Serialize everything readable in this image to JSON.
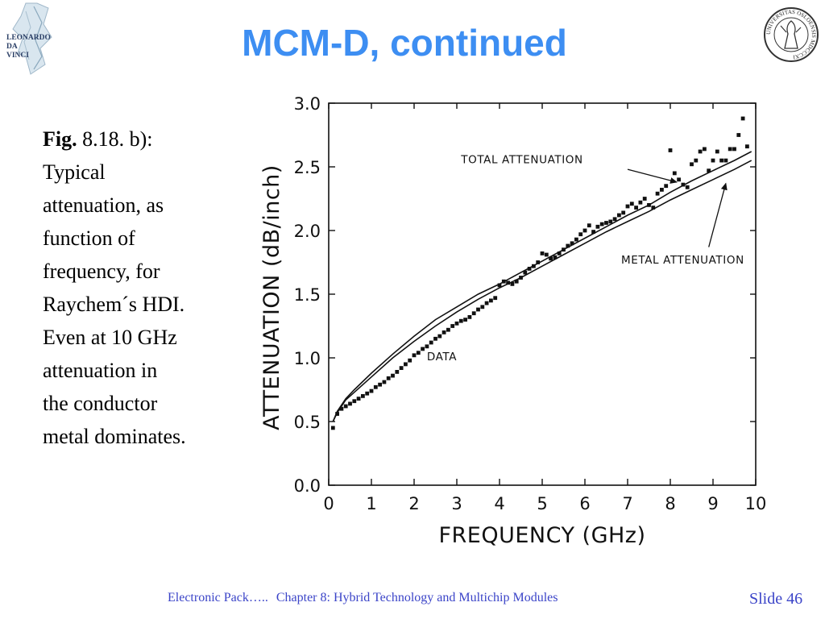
{
  "slide": {
    "title": "MCM-D, continued",
    "caption": {
      "fig_label": "Fig.",
      "fig_number": " 8.18. b):",
      "lines": [
        "Typical",
        "attenuation, as",
        "function of",
        "frequency, for",
        "Raychem´s HDI.",
        "Even at 10 GHz",
        "attenuation in",
        "the conductor",
        "metal dominates."
      ]
    },
    "logos": {
      "left": {
        "icon": "leonardo-da-vinci-logo",
        "text": [
          "LEONARDO",
          "DA",
          "VINCI"
        ]
      },
      "right": {
        "icon": "university-seal-logo",
        "text": "UNIVERSITAS OSLOENSIS MDCCCXI"
      }
    },
    "footer": {
      "course": "Electronic Pack…..",
      "chapter": "Chapter 8: Hybrid Technology and Multichip Modules",
      "slide_label": "Slide 46"
    }
  },
  "chart_data": {
    "type": "scatter",
    "xlabel": "FREQUENCY (GHz)",
    "ylabel": "ATTENUATION (dB/inch)",
    "xlim": [
      0,
      10
    ],
    "ylim": [
      0,
      3.0
    ],
    "x_ticks": [
      0,
      1,
      2,
      3,
      4,
      5,
      6,
      7,
      8,
      9,
      10
    ],
    "y_ticks": [
      0.0,
      0.5,
      1.0,
      1.5,
      2.0,
      2.5,
      3.0
    ],
    "grid": false,
    "annotations": [
      {
        "text": "TOTAL ATTENUATION",
        "points_to": "total"
      },
      {
        "text": "METAL ATTENUATION",
        "points_to": "metal"
      },
      {
        "text": "DATA",
        "points_to": "data"
      }
    ],
    "series": [
      {
        "name": "total",
        "style": "line",
        "x": [
          0.1,
          0.2,
          0.4,
          0.6,
          1.0,
          1.5,
          2.0,
          2.5,
          3.0,
          3.5,
          4.0,
          4.5,
          5.0,
          5.5,
          6.0,
          6.5,
          7.0,
          7.5,
          8.0,
          8.5,
          9.0,
          9.5,
          9.9
        ],
        "y": [
          0.5,
          0.58,
          0.68,
          0.75,
          0.88,
          1.03,
          1.17,
          1.3,
          1.4,
          1.5,
          1.58,
          1.67,
          1.76,
          1.85,
          1.94,
          2.03,
          2.12,
          2.2,
          2.3,
          2.39,
          2.47,
          2.55,
          2.62
        ]
      },
      {
        "name": "metal",
        "style": "line",
        "x": [
          0.1,
          0.2,
          0.4,
          0.6,
          1.0,
          1.5,
          2.0,
          2.5,
          3.0,
          3.5,
          4.0,
          4.5,
          5.0,
          5.5,
          6.0,
          6.5,
          7.0,
          7.5,
          8.0,
          8.5,
          9.0,
          9.5,
          9.9
        ],
        "y": [
          0.5,
          0.57,
          0.67,
          0.73,
          0.85,
          1.0,
          1.13,
          1.25,
          1.36,
          1.46,
          1.55,
          1.63,
          1.72,
          1.81,
          1.9,
          1.99,
          2.07,
          2.15,
          2.24,
          2.32,
          2.4,
          2.48,
          2.55
        ]
      },
      {
        "name": "data",
        "style": "points",
        "x": [
          0.1,
          0.2,
          0.3,
          0.4,
          0.5,
          0.6,
          0.7,
          0.8,
          0.9,
          1.0,
          1.1,
          1.2,
          1.3,
          1.4,
          1.5,
          1.6,
          1.7,
          1.8,
          1.9,
          2.0,
          2.1,
          2.2,
          2.3,
          2.4,
          2.5,
          2.6,
          2.7,
          2.8,
          2.9,
          3.0,
          3.1,
          3.2,
          3.3,
          3.4,
          3.5,
          3.6,
          3.7,
          3.8,
          3.9,
          4.0,
          4.1,
          4.2,
          4.3,
          4.4,
          4.5,
          4.6,
          4.7,
          4.8,
          4.9,
          5.0,
          5.1,
          5.2,
          5.3,
          5.4,
          5.5,
          5.6,
          5.7,
          5.8,
          5.9,
          6.0,
          6.1,
          6.2,
          6.3,
          6.4,
          6.5,
          6.6,
          6.7,
          6.8,
          6.9,
          7.0,
          7.1,
          7.2,
          7.3,
          7.4,
          7.5,
          7.6,
          7.7,
          7.8,
          7.9,
          8.0,
          8.1,
          8.2,
          8.3,
          8.4,
          8.5,
          8.6,
          8.7,
          8.8,
          8.9,
          9.0,
          9.1,
          9.2,
          9.3,
          9.4,
          9.5,
          9.6,
          9.7,
          9.8
        ],
        "y": [
          0.45,
          0.56,
          0.6,
          0.62,
          0.64,
          0.66,
          0.68,
          0.7,
          0.72,
          0.74,
          0.77,
          0.79,
          0.81,
          0.84,
          0.86,
          0.89,
          0.92,
          0.95,
          0.98,
          1.02,
          1.04,
          1.07,
          1.09,
          1.12,
          1.15,
          1.17,
          1.2,
          1.22,
          1.25,
          1.27,
          1.29,
          1.3,
          1.32,
          1.35,
          1.38,
          1.4,
          1.43,
          1.45,
          1.47,
          1.57,
          1.6,
          1.59,
          1.58,
          1.6,
          1.63,
          1.67,
          1.7,
          1.72,
          1.75,
          1.82,
          1.81,
          1.78,
          1.79,
          1.82,
          1.85,
          1.88,
          1.9,
          1.93,
          1.97,
          2.0,
          2.04,
          1.99,
          2.03,
          2.05,
          2.06,
          2.07,
          2.09,
          2.12,
          2.14,
          2.19,
          2.21,
          2.18,
          2.22,
          2.25,
          2.2,
          2.18,
          2.29,
          2.32,
          2.35,
          2.63,
          2.45,
          2.4,
          2.36,
          2.34,
          2.52,
          2.55,
          2.62,
          2.64,
          2.47,
          2.55,
          2.62,
          2.55,
          2.55,
          2.64,
          2.64,
          2.75,
          2.88,
          2.66
        ]
      }
    ]
  }
}
